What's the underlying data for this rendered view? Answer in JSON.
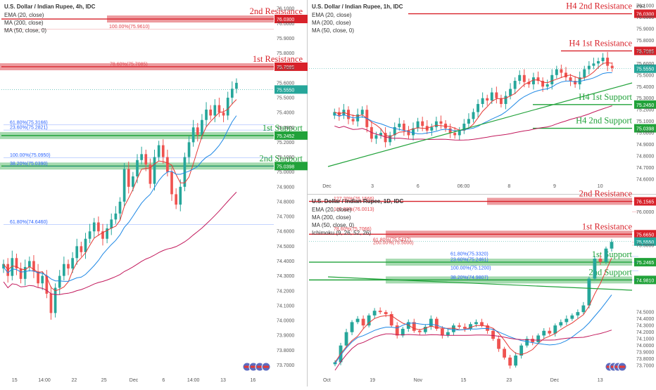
{
  "colors": {
    "up": "#26a69a",
    "down": "#ef5350",
    "res": "#d8222a",
    "sup": "#21a23a",
    "ema": "#e53935",
    "ma200": "#c2185b",
    "ma50": "#1e88e5",
    "flag": "#5c6bc0"
  },
  "chart_data": [
    {
      "type": "candlestick",
      "title": "U.S. Dollar / Indian Rupee, 4h, IDC",
      "legend": [
        "EMA (20, close)",
        "MA (200, close)",
        "MA (50, close, 0)"
      ],
      "ylim": [
        73.65,
        76.12
      ],
      "y_ticks": [
        "76.1000",
        "76.0000",
        "75.9000",
        "75.8000",
        "75.7000",
        "75.6000",
        "75.5000",
        "75.4000",
        "75.3000",
        "75.2000",
        "75.1000",
        "75.0000",
        "74.9000",
        "74.8000",
        "74.7000",
        "74.6000",
        "74.5000",
        "74.4000",
        "74.3000",
        "74.2000",
        "74.1000",
        "74.0000",
        "73.9000",
        "73.8000",
        "73.7000"
      ],
      "x_ticks": [
        "15",
        "14:00",
        "22",
        "25",
        "Dec",
        "6",
        "14:00",
        "13",
        "16"
      ],
      "levels": [
        {
          "label": "2nd Resistance",
          "value": 76.03,
          "tag": "76.0300",
          "kind": "res"
        },
        {
          "label": "1st Resistance",
          "value": 75.7085,
          "tag": "75.7085",
          "kind": "res"
        },
        {
          "label": "1st Support",
          "value": 75.2452,
          "tag": "75.2452",
          "kind": "sup"
        },
        {
          "label": "2nd Support",
          "value": 75.0398,
          "tag": "75.0398",
          "kind": "sup"
        }
      ],
      "price_tag": {
        "value": 75.555,
        "tag": "75.5550"
      },
      "fib_labels": [
        {
          "text": "100.00%(75.9610)",
          "value": 75.961,
          "color": "red"
        },
        {
          "text": "78.60%(75.7085)",
          "value": 75.7085,
          "color": "red"
        },
        {
          "text": "61.80%(75.3166)",
          "value": 75.3166,
          "color": "blue"
        },
        {
          "text": "23.60%(75.2821)",
          "value": 75.2821,
          "color": "blue"
        },
        {
          "text": "100.00%(75.0950)",
          "value": 75.095,
          "color": "blue"
        },
        {
          "text": "38.20%(75.0390)",
          "value": 75.039,
          "color": "blue"
        },
        {
          "text": "61.80%(74.6460)",
          "value": 74.646,
          "color": "blue"
        }
      ],
      "closes": [
        74.38,
        74.3,
        74.42,
        74.35,
        74.28,
        74.36,
        74.4,
        74.33,
        74.25,
        74.3,
        74.18,
        74.05,
        74.22,
        74.3,
        74.38,
        74.35,
        74.42,
        74.5,
        74.46,
        74.55,
        74.6,
        74.66,
        74.6,
        74.55,
        74.62,
        74.68,
        74.72,
        74.8,
        75.02,
        74.9,
        74.97,
        75.08,
        75.12,
        75.05,
        74.92,
        75.1,
        75.18,
        75.1,
        75.0,
        74.85,
        74.78,
        74.9,
        75.1,
        75.2,
        75.3,
        75.25,
        75.35,
        75.42,
        75.38,
        75.45,
        75.4,
        75.38,
        75.5,
        75.56,
        75.6
      ]
    },
    {
      "type": "candlestick",
      "title": "U.S. Dollar / Indian Rupee, 1h, IDC",
      "legend": [
        "EMA (20, close)",
        "MA (200, close)",
        "MA (50, close, 0)"
      ],
      "ylim": [
        74.6,
        76.1
      ],
      "y_ticks": [
        "INR",
        "76.1000",
        "76.0000",
        "75.9000",
        "75.8000",
        "75.7000",
        "75.6000",
        "75.5000",
        "75.4000",
        "75.3000",
        "75.2000",
        "75.1000",
        "75.0000",
        "74.9000",
        "74.8000",
        "74.7000",
        "74.6000"
      ],
      "x_ticks": [
        "Dec",
        "3",
        "6",
        "06:00",
        "8",
        "9",
        "10"
      ],
      "levels": [
        {
          "label": "H4 2nd Resistance",
          "value": 76.03,
          "tag": "76.0300",
          "kind": "res"
        },
        {
          "label": "H4 1st Resistance",
          "value": 75.7085,
          "tag": "75.7085",
          "kind": "res"
        },
        {
          "label": "H4 1st Support",
          "value": 75.245,
          "tag": "75.2450",
          "kind": "sup"
        },
        {
          "label": "H4 2nd Support",
          "value": 75.0398,
          "tag": "75.0398",
          "kind": "sup"
        }
      ],
      "price_tag": {
        "value": 75.555,
        "tag": "75.5550"
      },
      "closes": [
        75.18,
        75.15,
        75.2,
        75.12,
        75.1,
        75.16,
        75.2,
        75.05,
        74.95,
        74.98,
        75.0,
        74.92,
        74.98,
        75.05,
        75.08,
        75.02,
        74.98,
        75.04,
        75.1,
        75.06,
        75.02,
        75.05,
        75.1,
        75.08,
        75.04,
        75.0,
        74.98,
        75.02,
        75.08,
        75.12,
        75.18,
        75.25,
        75.3,
        75.28,
        75.35,
        75.3,
        75.25,
        75.32,
        75.38,
        75.45,
        75.5,
        75.44,
        75.42,
        75.48,
        75.45,
        75.4,
        75.42,
        75.5,
        75.55,
        75.52,
        75.48,
        75.45,
        75.42,
        75.48,
        75.55,
        75.58,
        75.6,
        75.62,
        75.65,
        75.58,
        75.56
      ]
    },
    {
      "type": "candlestick",
      "title": "U.S. Dollar / Indian Rupee, 1D, IDC",
      "legend": [
        "EMA (20, close)",
        "MA (200, close)",
        "MA (50, close, 0)",
        "Ichimoku (9, 26, 52, 26)"
      ],
      "ylim": [
        73.65,
        76.12
      ],
      "y_ticks": [
        "76.0000",
        "75.5000",
        "74.5000",
        "74.4000",
        "74.3000",
        "74.2000",
        "74.1000",
        "74.0000",
        "73.9000",
        "73.8000",
        "73.7000"
      ],
      "x_ticks": [
        "Oct",
        "19",
        "Nov",
        "15",
        "23",
        "Dec",
        "13"
      ],
      "levels": [
        {
          "label": "2nd Resistance",
          "value": 76.1565,
          "tag": "76.1565",
          "kind": "res"
        },
        {
          "label": "1st Resistance",
          "value": 75.665,
          "tag": "75.6650",
          "kind": "res"
        },
        {
          "label": "1st Support",
          "value": 75.2465,
          "tag": "75.2465",
          "kind": "sup"
        },
        {
          "label": "2nd Support",
          "value": 74.981,
          "tag": "74.9810",
          "kind": "sup"
        }
      ],
      "price_tag": {
        "value": 75.555,
        "tag": "75.5550"
      },
      "fib_labels": [
        {
          "text": "127.20%(76.1566)",
          "value": 76.1566,
          "color": "red"
        },
        {
          "text": "100.00%(76.0013)",
          "value": 76.0013,
          "color": "red"
        },
        {
          "text": "78.60%(75.7066)",
          "value": 75.7066,
          "color": "red"
        },
        {
          "text": "61.80%(75.5437)",
          "value": 75.5437,
          "color": "red"
        },
        {
          "text": "200.00%(75.5000)",
          "value": 75.5,
          "color": "red"
        },
        {
          "text": "61.80%(75.3320)",
          "value": 75.332,
          "color": "blue"
        },
        {
          "text": "23.60%(75.2461)",
          "value": 75.2461,
          "color": "blue"
        },
        {
          "text": "100.00%(75.1200)",
          "value": 75.12,
          "color": "blue"
        },
        {
          "text": "38.20%(74.9807)",
          "value": 74.9807,
          "color": "blue"
        }
      ],
      "closes": [
        73.75,
        74.0,
        74.2,
        74.35,
        74.4,
        74.3,
        74.45,
        74.52,
        74.5,
        74.47,
        74.3,
        74.15,
        74.25,
        74.35,
        74.22,
        74.2,
        74.28,
        74.4,
        74.25,
        74.15,
        74.2,
        74.3,
        74.28,
        74.25,
        74.32,
        74.35,
        74.3,
        74.22,
        74.1,
        73.95,
        73.82,
        73.7,
        73.85,
        74.0,
        74.1,
        74.05,
        74.15,
        74.22,
        74.18,
        74.3,
        74.35,
        74.4,
        74.45,
        74.5,
        74.6,
        75.0,
        75.3,
        75.25,
        75.45,
        75.55
      ]
    }
  ]
}
